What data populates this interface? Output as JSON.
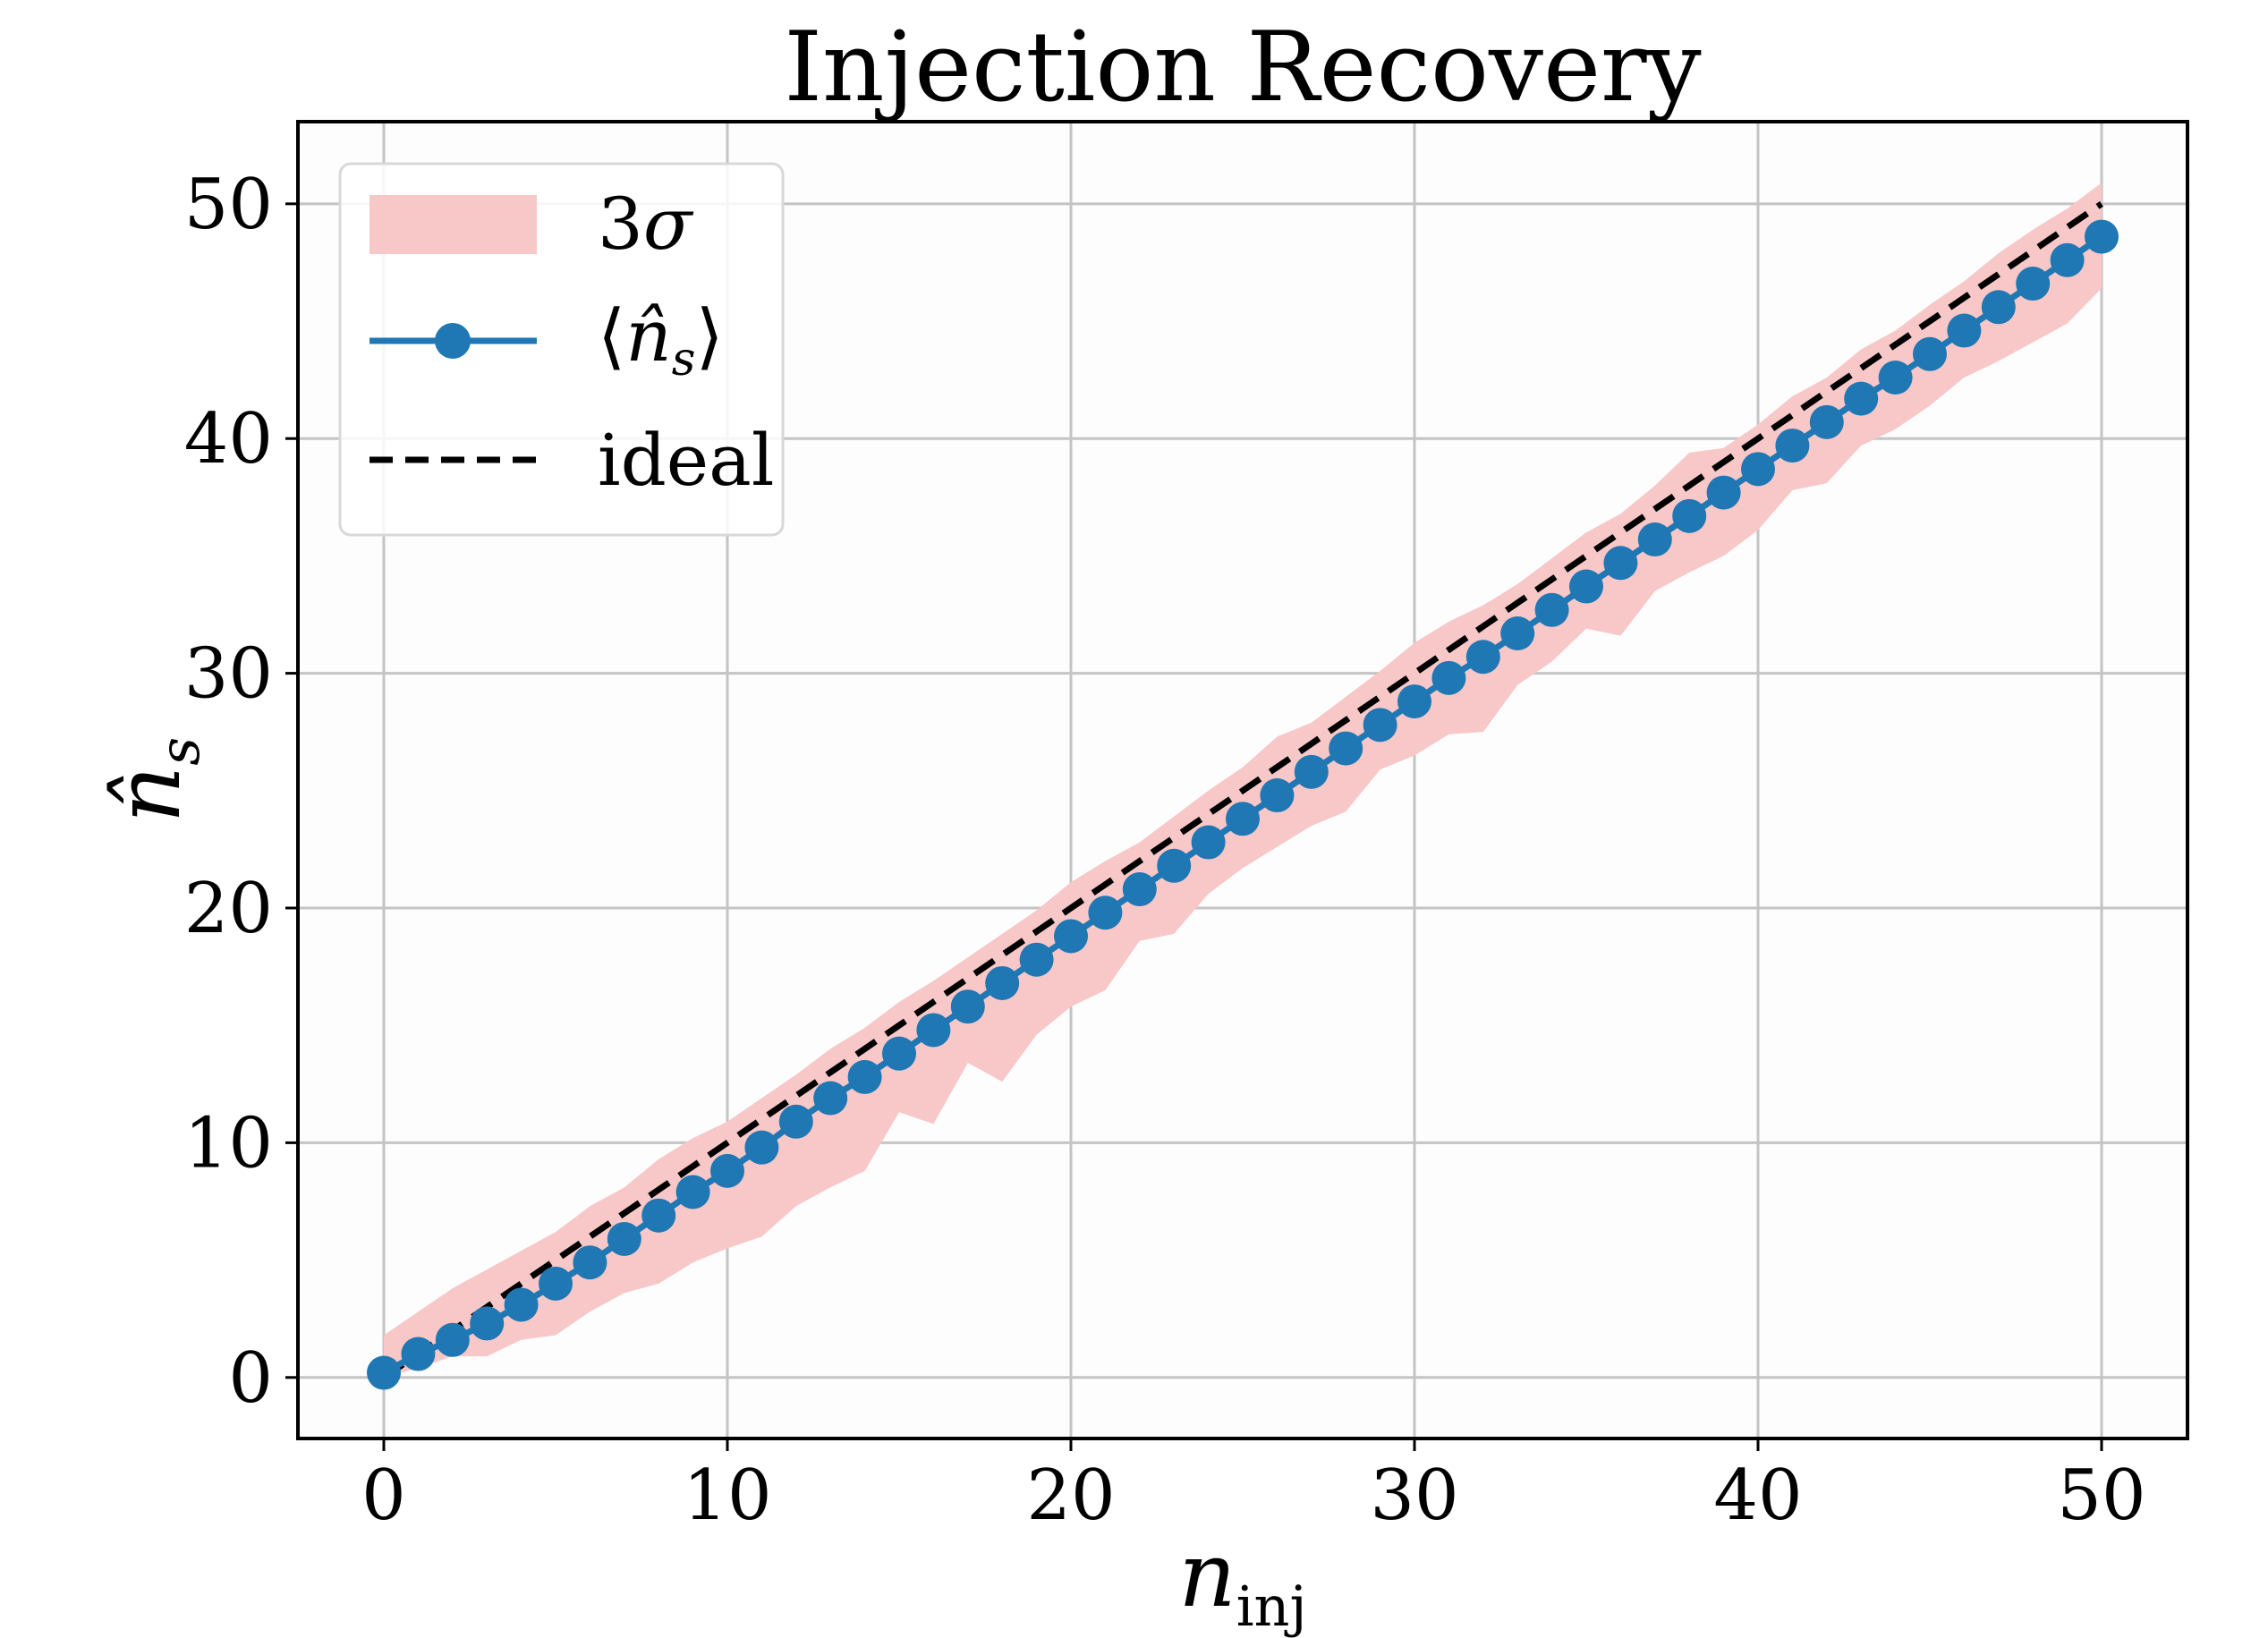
{
  "chart_data": {
    "type": "line",
    "title": "Injection Recovery",
    "xlabel": "n",
    "xlabel_sub": "inj",
    "ylabel": "n̂",
    "ylabel_sub": "s",
    "xlim": [
      -2.5,
      52.5
    ],
    "ylim": [
      -2.6,
      53.5
    ],
    "xticks": [
      0,
      10,
      20,
      30,
      40,
      50
    ],
    "yticks": [
      0,
      10,
      20,
      30,
      40,
      50
    ],
    "xtick_labels": [
      "0",
      "10",
      "20",
      "30",
      "40",
      "50"
    ],
    "ytick_labels": [
      "0",
      "10",
      "20",
      "30",
      "40",
      "50"
    ],
    "grid": true,
    "legend_position": "top-left",
    "x": [
      0,
      1,
      2,
      3,
      4,
      5,
      6,
      7,
      8,
      9,
      10,
      11,
      12,
      13,
      14,
      15,
      16,
      17,
      18,
      19,
      20,
      21,
      22,
      23,
      24,
      25,
      26,
      27,
      28,
      29,
      30,
      31,
      32,
      33,
      34,
      35,
      36,
      37,
      38,
      39,
      40,
      41,
      42,
      43,
      44,
      45,
      46,
      47,
      48,
      49,
      50
    ],
    "series": [
      {
        "name": "3σ",
        "kind": "band",
        "color": "#f8c8c8",
        "lower": [
          0.0,
          0.4,
          0.9,
          0.9,
          1.6,
          1.8,
          2.8,
          3.6,
          4.0,
          4.9,
          5.5,
          6.0,
          7.3,
          8.1,
          8.8,
          11.3,
          10.8,
          13.4,
          12.6,
          14.6,
          15.8,
          16.5,
          18.6,
          18.9,
          20.6,
          21.7,
          22.6,
          23.5,
          24.1,
          25.9,
          26.5,
          27.4,
          27.5,
          29.5,
          30.5,
          31.9,
          31.6,
          33.5,
          34.3,
          35.0,
          36.1,
          37.8,
          38.1,
          39.7,
          40.4,
          41.4,
          42.6,
          43.3,
          44.1,
          44.9,
          46.4
        ],
        "upper": [
          1.8,
          2.8,
          3.8,
          4.6,
          5.4,
          6.2,
          7.3,
          8.1,
          9.3,
          10.2,
          10.9,
          11.9,
          12.9,
          14.0,
          14.9,
          16.0,
          16.9,
          17.9,
          18.9,
          19.9,
          21.1,
          22.0,
          22.8,
          23.9,
          25.0,
          26.0,
          27.3,
          27.9,
          29.0,
          30.1,
          31.3,
          32.2,
          32.9,
          33.8,
          34.9,
          36.0,
          36.8,
          38.0,
          39.4,
          39.6,
          40.6,
          41.8,
          42.6,
          43.8,
          44.6,
          45.7,
          46.7,
          47.9,
          48.9,
          49.8,
          50.9
        ]
      },
      {
        "name": "⟨n̂s⟩",
        "kind": "line-markers",
        "color": "#1f77b4",
        "values": [
          0.2,
          1.0,
          1.6,
          2.3,
          3.1,
          4.0,
          4.9,
          5.9,
          6.9,
          7.9,
          8.8,
          9.8,
          10.9,
          11.9,
          12.8,
          13.8,
          14.8,
          15.8,
          16.8,
          17.8,
          18.8,
          19.8,
          20.8,
          21.8,
          22.8,
          23.8,
          24.8,
          25.8,
          26.8,
          27.8,
          28.8,
          29.8,
          30.7,
          31.7,
          32.7,
          33.7,
          34.7,
          35.7,
          36.7,
          37.7,
          38.7,
          39.7,
          40.7,
          41.7,
          42.6,
          43.6,
          44.6,
          45.6,
          46.6,
          47.6,
          48.6
        ]
      },
      {
        "name": "ideal",
        "kind": "dashed-line",
        "color": "#000000",
        "values": [
          0,
          1,
          2,
          3,
          4,
          5,
          6,
          7,
          8,
          9,
          10,
          11,
          12,
          13,
          14,
          15,
          16,
          17,
          18,
          19,
          20,
          21,
          22,
          23,
          24,
          25,
          26,
          27,
          28,
          29,
          30,
          31,
          32,
          33,
          34,
          35,
          36,
          37,
          38,
          39,
          40,
          41,
          42,
          43,
          44,
          45,
          46,
          47,
          48,
          49,
          50
        ]
      }
    ]
  },
  "legend": {
    "band_label_num": "3",
    "band_label_sym": "σ",
    "mean_label": "⟨n̂s⟩",
    "mean_label_open": "⟨",
    "mean_label_var": "n̂",
    "mean_label_sub": "s",
    "mean_label_close": "⟩",
    "ideal_label": "ideal"
  }
}
